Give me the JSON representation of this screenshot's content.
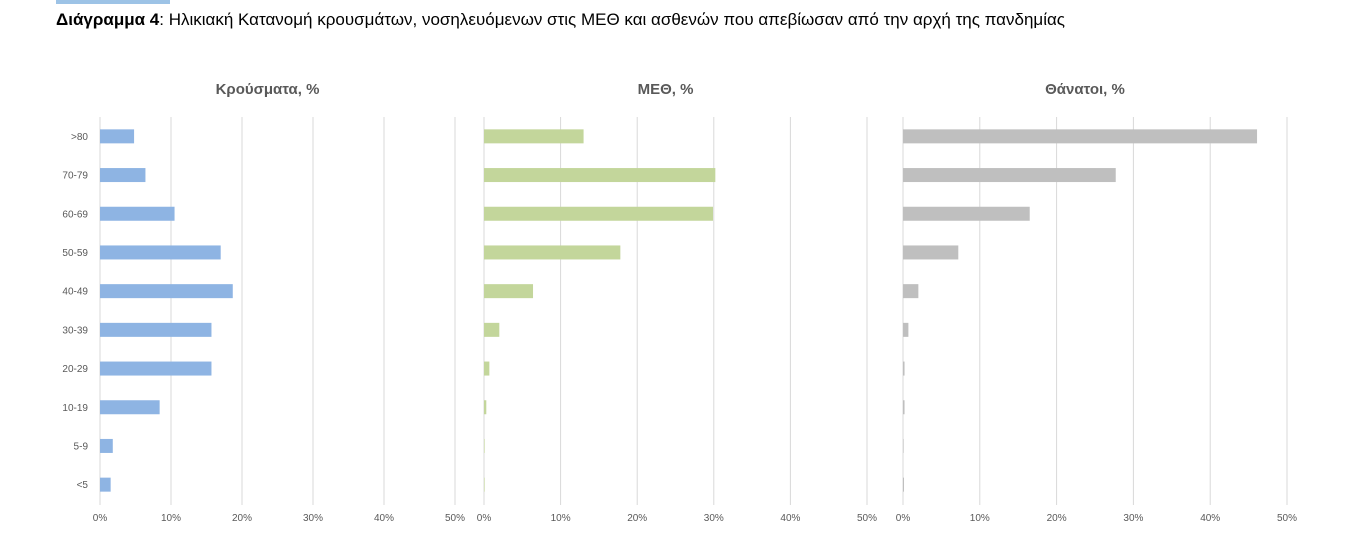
{
  "caption": {
    "label": "Διάγραμμα 4",
    "separator": ": ",
    "text": "Ηλικιακή Κατανομή κρουσμάτων, νοσηλευόμενων στις ΜΕΘ και ασθενών που απεβίωσαν από την αρχή της πανδημίας"
  },
  "chart_data": [
    {
      "type": "bar",
      "orientation": "horizontal",
      "title": "Κρούσματα, %",
      "categories": [
        ">80",
        "70-79",
        "60-69",
        "50-59",
        "40-49",
        "30-39",
        "20-29",
        "10-19",
        "5-9",
        "<5"
      ],
      "values": [
        4.8,
        6.4,
        10.5,
        17.0,
        18.7,
        15.7,
        15.7,
        8.4,
        1.8,
        1.5
      ],
      "xlim": [
        0,
        50
      ],
      "xticks": [
        "0%",
        "10%",
        "20%",
        "30%",
        "40%",
        "50%"
      ],
      "grid": "vertical",
      "color": "#8eb4e3"
    },
    {
      "type": "bar",
      "orientation": "horizontal",
      "title": "ΜΕΘ, %",
      "categories": [
        ">80",
        "70-79",
        "60-69",
        "50-59",
        "40-49",
        "30-39",
        "20-29",
        "10-19",
        "5-9",
        "<5"
      ],
      "values": [
        13.0,
        30.2,
        29.9,
        17.8,
        6.4,
        2.0,
        0.7,
        0.3,
        0.0,
        0.0
      ],
      "xlim": [
        0,
        50
      ],
      "xticks": [
        "0%",
        "10%",
        "20%",
        "30%",
        "40%",
        "50%"
      ],
      "grid": "vertical",
      "color": "#c3d69b"
    },
    {
      "type": "bar",
      "orientation": "horizontal",
      "title": "Θάνατοι, %",
      "categories": [
        ">80",
        "70-79",
        "60-69",
        "50-59",
        "40-49",
        "30-39",
        "20-29",
        "10-19",
        "5-9",
        "<5"
      ],
      "values": [
        46.1,
        27.7,
        16.5,
        7.2,
        2.0,
        0.7,
        0.2,
        0.2,
        0.0,
        0.1
      ],
      "xlim": [
        0,
        50
      ],
      "xticks": [
        "0%",
        "10%",
        "20%",
        "30%",
        "40%",
        "50%"
      ],
      "grid": "vertical",
      "color": "#bfbfbf"
    }
  ]
}
